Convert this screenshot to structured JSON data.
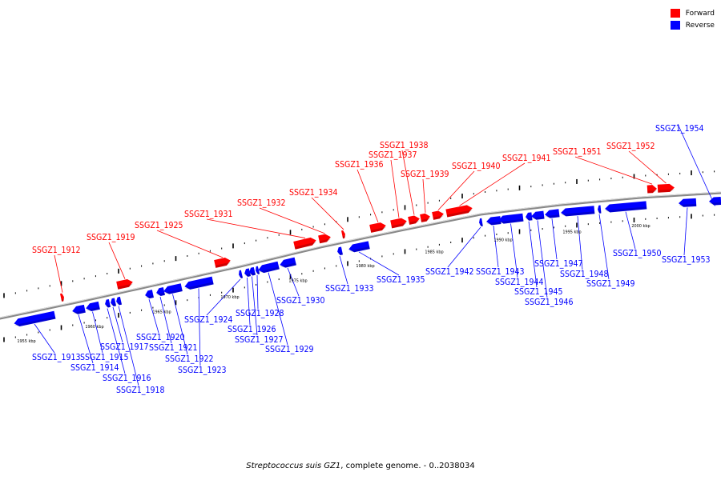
{
  "caption": {
    "organism": "Streptococcus suis GZ1",
    "suffix": ", complete genome. - 0..2038034"
  },
  "legend": [
    {
      "label": "Forward",
      "color": "#ff0000"
    },
    {
      "label": "Reverse",
      "color": "#0000ff"
    }
  ],
  "colors": {
    "forward": "#ff0000",
    "reverse": "#0000ff",
    "axis": "#888888"
  },
  "scale_labels": [
    "1955 kbp",
    "1960 kbp",
    "1965 kbp",
    "1970 kbp",
    "1975 kbp",
    "1980 kbp",
    "1985 kbp",
    "1990 kbp",
    "1995 kbp",
    "2000 kbp"
  ],
  "forward_genes": [
    "SSGZ1_1912",
    "SSGZ1_1919",
    "SSGZ1_1925",
    "SSGZ1_1931",
    "SSGZ1_1932",
    "SSGZ1_1934",
    "SSGZ1_1936",
    "SSGZ1_1937",
    "SSGZ1_1938",
    "SSGZ1_1939",
    "SSGZ1_1940",
    "SSGZ1_1941",
    "SSGZ1_1951",
    "SSGZ1_1952"
  ],
  "reverse_genes": [
    "SSGZ1_1913",
    "SSGZ1_1914",
    "SSGZ1_1915",
    "SSGZ1_1916",
    "SSGZ1_1917",
    "SSGZ1_1918",
    "SSGZ1_1920",
    "SSGZ1_1921",
    "SSGZ1_1922",
    "SSGZ1_1923",
    "SSGZ1_1924",
    "SSGZ1_1926",
    "SSGZ1_1927",
    "SSGZ1_1928",
    "SSGZ1_1929",
    "SSGZ1_1930",
    "SSGZ1_1933",
    "SSGZ1_1935",
    "SSGZ1_1942",
    "SSGZ1_1943",
    "SSGZ1_1944",
    "SSGZ1_1945",
    "SSGZ1_1946",
    "SSGZ1_1947",
    "SSGZ1_1948",
    "SSGZ1_1949",
    "SSGZ1_1950",
    "SSGZ1_1953",
    "SSGZ1_1954"
  ]
}
